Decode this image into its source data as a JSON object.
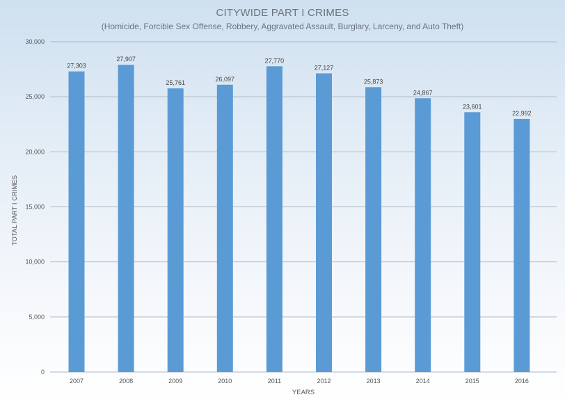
{
  "chart_data": {
    "type": "bar",
    "title": "CITYWIDE PART I CRIMES",
    "subtitle": "(Homicide, Forcible Sex Offense, Robbery, Aggravated Assault, Burglary, Larceny, and Auto Theft)",
    "xlabel": "YEARS",
    "ylabel": "TOTAL PART I CRIMES",
    "categories": [
      "2007",
      "2008",
      "2009",
      "2010",
      "2011",
      "2012",
      "2013",
      "2014",
      "2015",
      "2016"
    ],
    "values": [
      27303,
      27907,
      25761,
      26097,
      27770,
      27127,
      25873,
      24867,
      23601,
      22992
    ],
    "value_labels": [
      "27,303",
      "27,907",
      "25,761",
      "26,097",
      "27,770",
      "27,127",
      "25,873",
      "24,867",
      "23,601",
      "22,992"
    ],
    "ylim": [
      0,
      30000
    ],
    "yticks": [
      0,
      5000,
      10000,
      15000,
      20000,
      25000,
      30000
    ],
    "ytick_labels": [
      "0",
      "5,000",
      "10,000",
      "15,000",
      "20,000",
      "25,000",
      "30,000"
    ],
    "grid": true,
    "bar_color": "#5b9bd5",
    "grid_color": "#aab8c6"
  }
}
